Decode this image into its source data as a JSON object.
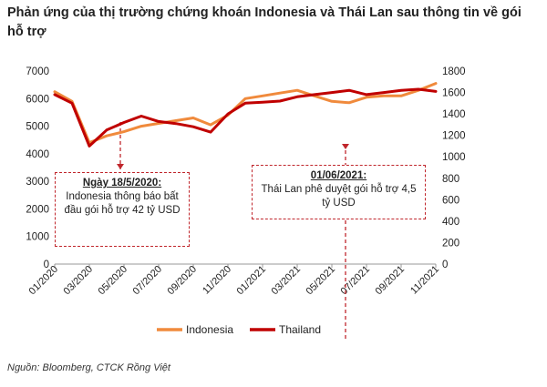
{
  "title": "Phản ứng của thị trường chứng khoán Indonesia và Thái Lan sau thông tin về gói hỗ trợ",
  "source": "Nguồn: Bloomberg, CTCK Rồng Việt",
  "annotations": [
    {
      "heading": "Ngày 18/5/2020:",
      "text": "Indonesia thông báo bất đầu gói hỗ trợ 42 tỷ USD",
      "x": "05/2020"
    },
    {
      "heading": "01/06/2021:",
      "text": "Thái Lan phê duyệt gói hỗ trợ 4,5 tỷ USD",
      "x": "06/2021"
    }
  ],
  "chart_data": {
    "type": "line",
    "title": "Phản ứng của thị trường chứng khoán Indonesia và Thái Lan sau thông tin về gói hỗ trợ",
    "x": [
      "01/2020",
      "02/2020",
      "03/2020",
      "04/2020",
      "05/2020",
      "06/2020",
      "07/2020",
      "08/2020",
      "09/2020",
      "10/2020",
      "11/2020",
      "12/2020",
      "01/2021",
      "02/2021",
      "03/2021",
      "04/2021",
      "05/2021",
      "06/2021",
      "07/2021",
      "08/2021",
      "09/2021",
      "10/2021",
      "11/2021"
    ],
    "x_tick_labels": [
      "01/2020",
      "03/2020",
      "05/2020",
      "07/2020",
      "09/2020",
      "11/2020",
      "01/2021",
      "03/2021",
      "05/2021",
      "07/2021",
      "09/2021",
      "11/2021"
    ],
    "series": [
      {
        "name": "Indonesia",
        "axis": "left",
        "color": "#f08a3c",
        "values": [
          6250,
          5900,
          4400,
          4650,
          4800,
          5000,
          5100,
          5200,
          5300,
          5050,
          5400,
          6000,
          6100,
          6200,
          6300,
          6100,
          5900,
          5850,
          6050,
          6100,
          6100,
          6300,
          6550
        ]
      },
      {
        "name": "Thailand",
        "axis": "right",
        "color": "#c00000",
        "values": [
          1580,
          1500,
          1100,
          1250,
          1320,
          1380,
          1330,
          1310,
          1280,
          1230,
          1400,
          1500,
          1510,
          1520,
          1560,
          1580,
          1600,
          1620,
          1580,
          1600,
          1620,
          1630,
          1610
        ]
      }
    ],
    "y_left": {
      "ylim": [
        0,
        7000
      ],
      "ticks": [
        0,
        1000,
        2000,
        3000,
        4000,
        5000,
        6000,
        7000
      ]
    },
    "y_right": {
      "ylim": [
        0,
        1800
      ],
      "ticks": [
        0,
        200,
        400,
        600,
        800,
        1000,
        1200,
        1400,
        1600,
        1800
      ]
    },
    "grid": false,
    "legend_position": "bottom"
  }
}
